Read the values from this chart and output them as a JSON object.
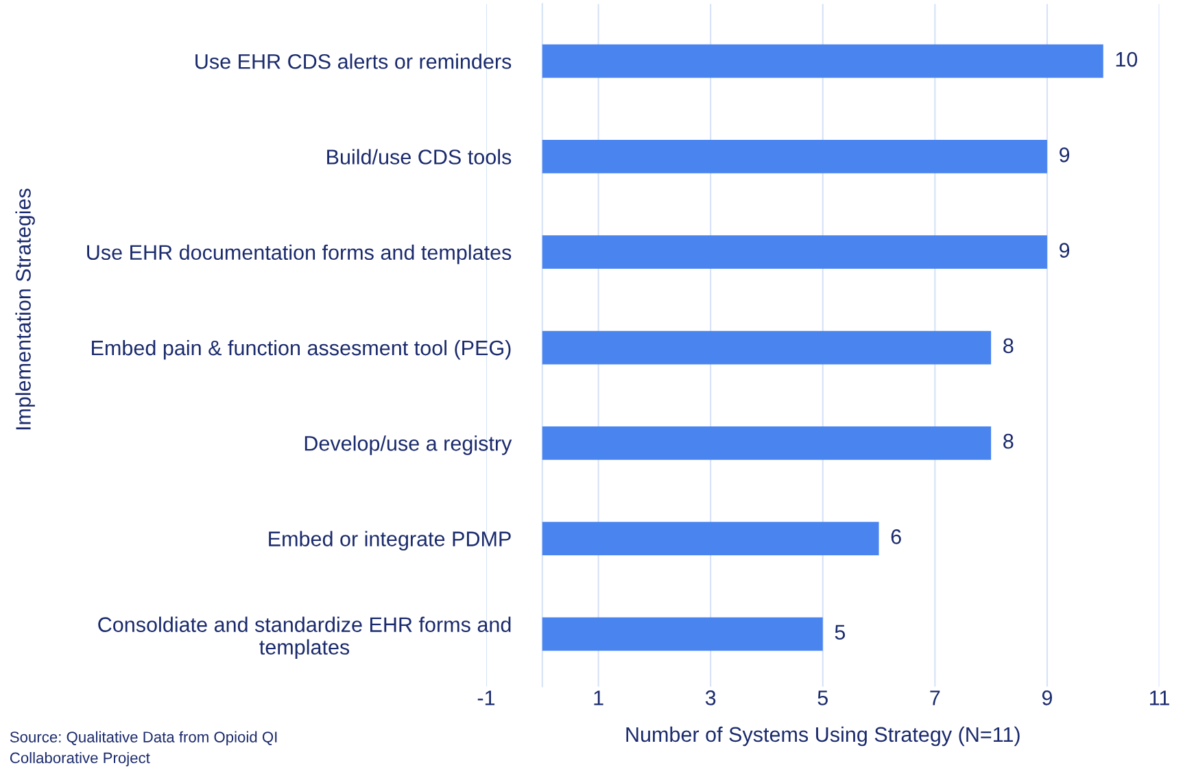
{
  "chart_data": {
    "type": "bar",
    "orientation": "horizontal",
    "categories": [
      "Use EHR CDS alerts or reminders",
      "Build/use CDS tools",
      "Use EHR documentation forms and templates",
      "Embed pain & function assesment tool (PEG)",
      "Develop/use a registry",
      "Embed or integrate PDMP",
      "Consoldiate and standardize EHR forms and\ntemplates"
    ],
    "values": [
      10,
      9,
      9,
      8,
      8,
      6,
      5
    ],
    "color": "#4a84ef",
    "xlim": [
      -1,
      11
    ],
    "xticks": [
      -1,
      1,
      3,
      5,
      7,
      9,
      11
    ],
    "xlabel": "Number of Systems Using Strategy (N=11)",
    "ylabel": "Implementation Strategies",
    "data_labels": true,
    "grid": "x",
    "legend": false,
    "annotations": [
      "Source: Qualitative Data from Opioid QI\nCollaborative Project"
    ]
  }
}
